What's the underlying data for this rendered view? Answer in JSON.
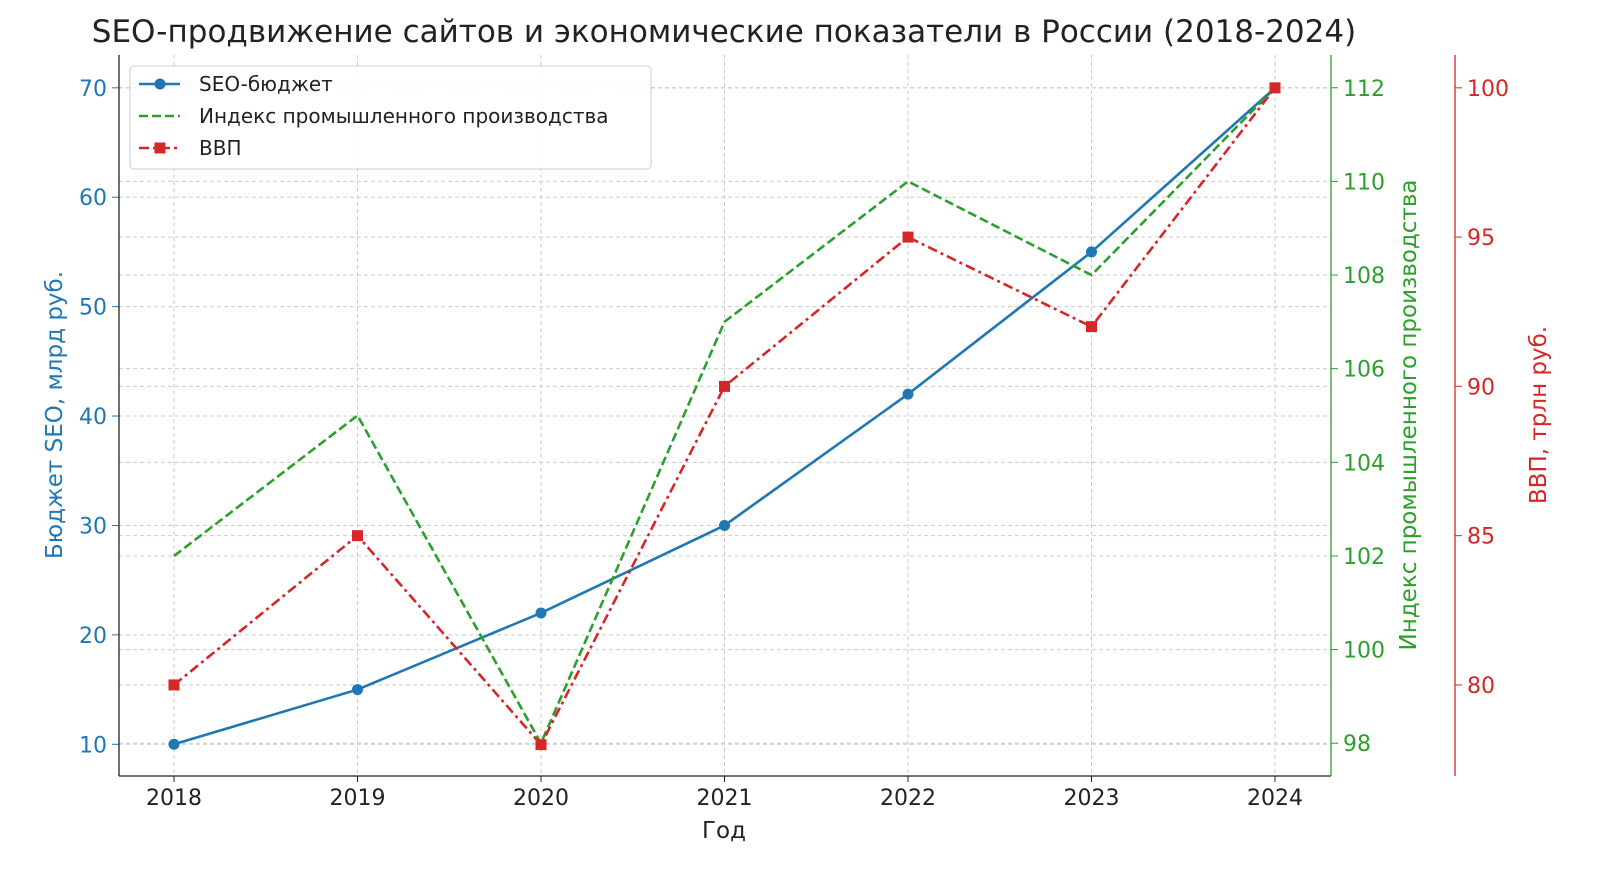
{
  "chart_data": {
    "type": "line",
    "title": "SEO-продвижение сайтов и экономические показатели в России (2018-2024)",
    "xlabel": "Год",
    "x": [
      2018,
      2019,
      2020,
      2021,
      2022,
      2023,
      2024
    ],
    "grid": true,
    "legend_placement": "top-left",
    "axes": {
      "left": {
        "label": "Бюджет SEO, млрд руб.",
        "ylim": [
          7.1,
          73.0
        ],
        "ticks": [
          10,
          20,
          30,
          40,
          50,
          60,
          70
        ],
        "color": "#1f77b4"
      },
      "right1": {
        "label": "Индекс промышленного производства",
        "ylim": [
          97.3,
          112.7
        ],
        "ticks": [
          98,
          100,
          102,
          104,
          106,
          108,
          110,
          112
        ],
        "color": "#2ca02c"
      },
      "right2": {
        "label": "ВВП, трлн руб.",
        "ylim": [
          76.95,
          101.1
        ],
        "ticks": [
          80,
          85,
          90,
          95,
          100
        ],
        "color": "#d62728"
      }
    },
    "series": [
      {
        "name": "SEO-бюджет",
        "axis": "left",
        "values": [
          10,
          15,
          22,
          30,
          42,
          55,
          70
        ],
        "color": "#1f77b4",
        "style": "solid",
        "marker": "circle"
      },
      {
        "name": "Индекс промышленного производства",
        "axis": "right1",
        "values": [
          102,
          105,
          98,
          107,
          110,
          108,
          112
        ],
        "color": "#2ca02c",
        "style": "dashed",
        "marker": "none"
      },
      {
        "name": "ВВП",
        "axis": "right2",
        "values": [
          80,
          85,
          78,
          90,
          95,
          92,
          100
        ],
        "color": "#d62728",
        "style": "dashdot",
        "marker": "square"
      }
    ]
  }
}
